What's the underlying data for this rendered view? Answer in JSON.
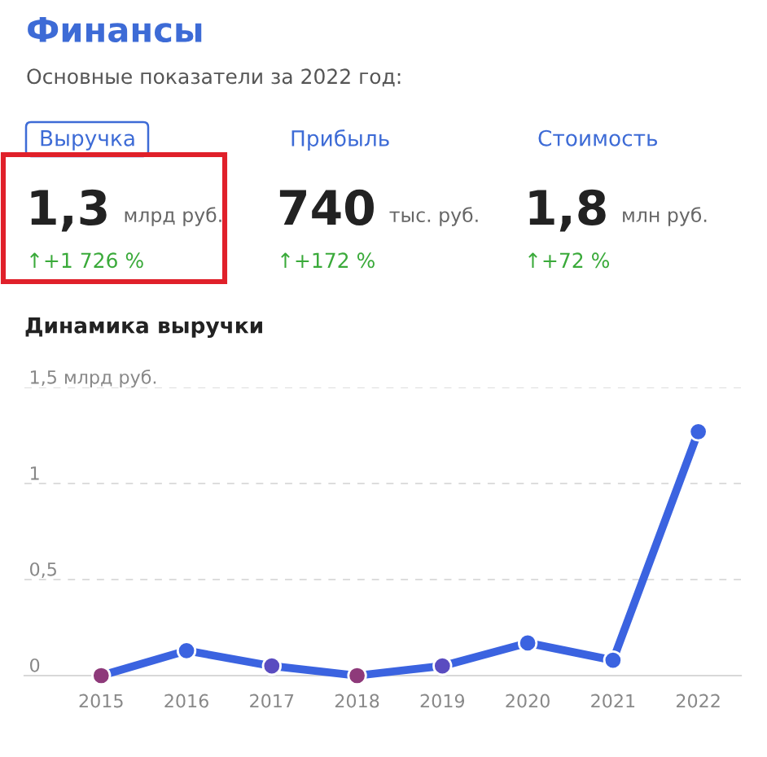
{
  "chart_data": [
    {
      "type": "other",
      "title": "Финансы",
      "subtitle": "Основные показатели за 2022 год:",
      "annotations": [
        "Выручка",
        "1,3",
        "млрд руб.",
        "↑+1 726 %",
        "Прибыль",
        "740",
        "тыс. руб.",
        "↑+172 %",
        "Стоимость",
        "1,8",
        "млн руб.",
        "↑+72 %"
      ]
    },
    {
      "type": "line",
      "title": "Динамика выручки",
      "categories": [
        "2015",
        "2016",
        "2017",
        "2018",
        "2019",
        "2020",
        "2021",
        "2022"
      ],
      "series": [
        {
          "color": "#3b63e0",
          "values": [
            0.0,
            0.13,
            0.05,
            0.0,
            0.05,
            0.17,
            0.08,
            1.27
          ],
          "colors": [
            "#8e3a7a",
            "#3b63e0",
            "#5a4cc0",
            "#8e3a7a",
            "#5a4cc0",
            "#3b63e0",
            "#3b63e0",
            "#3b63e0"
          ]
        }
      ],
      "ylim": [
        0,
        1.5
      ],
      "yticks": [
        0,
        {
          "value": 0.5,
          "label": "0,5"
        },
        1,
        {
          "value": 1.5,
          "label": "1,5 млрд руб."
        }
      ],
      "grid": "y",
      "marker": "circle",
      "line_style": "solid"
    }
  ]
}
